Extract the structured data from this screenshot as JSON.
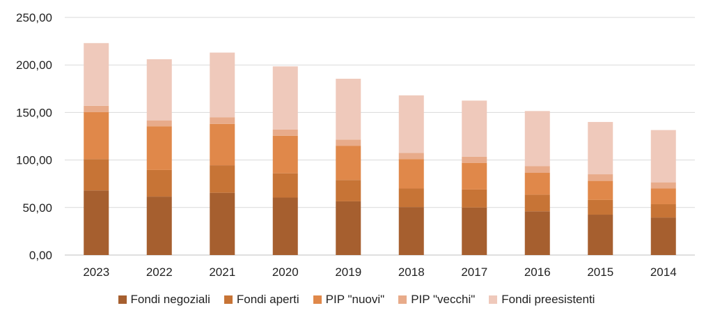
{
  "chart_data": {
    "type": "bar",
    "stacked": true,
    "categories": [
      "2023",
      "2022",
      "2021",
      "2020",
      "2019",
      "2018",
      "2017",
      "2016",
      "2015",
      "2014"
    ],
    "series": [
      {
        "name": "Fondi negoziali",
        "color": "#a65f2f",
        "values": [
          68,
          61.5,
          65.5,
          60.5,
          56.5,
          50.5,
          50,
          46,
          42.5,
          39.5
        ]
      },
      {
        "name": "Fondi aperti",
        "color": "#c77436",
        "values": [
          33,
          28,
          29,
          25.5,
          22.5,
          19.5,
          19,
          17.5,
          15.5,
          14
        ]
      },
      {
        "name": "PIP \"nuovi\"",
        "color": "#e0884a",
        "values": [
          49.5,
          46,
          43.5,
          39.5,
          36,
          31,
          28,
          23,
          20,
          16.5
        ]
      },
      {
        "name": "PIP \"vecchi\"",
        "color": "#e8ab8a",
        "values": [
          6.5,
          6,
          7,
          6.5,
          6.5,
          6.5,
          6.5,
          7,
          7,
          6.5
        ]
      },
      {
        "name": "Fondi preesistenti",
        "color": "#efc9bb",
        "values": [
          66,
          64.5,
          68,
          66.5,
          64,
          60.5,
          59,
          58,
          55,
          55
        ]
      }
    ],
    "yticks": [
      "250,00",
      "200,00",
      "150,00",
      "100,00",
      "50,00",
      "0,00"
    ],
    "ylim": [
      0,
      250
    ],
    "grid": true,
    "legend_position": "bottom",
    "title": "",
    "xlabel": "",
    "ylabel": ""
  }
}
